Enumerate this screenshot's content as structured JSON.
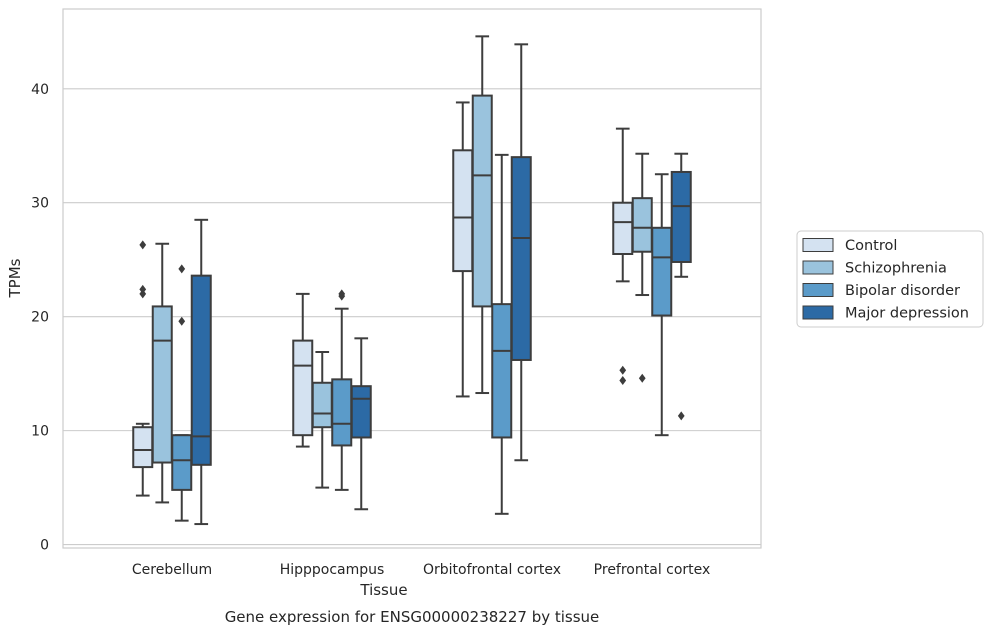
{
  "chart_data": {
    "type": "box",
    "title": "",
    "xlabel": "Tissue",
    "ylabel": "TPMs",
    "caption": "Gene expression for ENSG00000238227 by tissue",
    "ylim": [
      -0.3,
      47
    ],
    "yticks": [
      0,
      10,
      20,
      30,
      40
    ],
    "grid": "horizontal",
    "legend_position": "right",
    "categories": [
      "Cerebellum",
      "Hipppocampus",
      "Orbitofrontal cortex",
      "Prefrontal cortex"
    ],
    "series": [
      {
        "name": "Control",
        "color": "#d4e2f1",
        "boxes": [
          {
            "q1": 6.8,
            "median": 8.3,
            "q3": 10.3,
            "whisker_low": 4.3,
            "whisker_high": 10.6,
            "outliers": [
              22.0,
              22.4,
              26.3
            ]
          },
          {
            "q1": 9.6,
            "median": 15.7,
            "q3": 17.9,
            "whisker_low": 8.6,
            "whisker_high": 22.0,
            "outliers": []
          },
          {
            "q1": 24.0,
            "median": 28.7,
            "q3": 34.6,
            "whisker_low": 13.0,
            "whisker_high": 38.8,
            "outliers": []
          },
          {
            "q1": 25.5,
            "median": 28.3,
            "q3": 30.0,
            "whisker_low": 23.1,
            "whisker_high": 36.5,
            "outliers": [
              14.4,
              15.3
            ]
          }
        ]
      },
      {
        "name": "Schizophrenia",
        "color": "#9ac3dd",
        "boxes": [
          {
            "q1": 7.2,
            "median": 17.9,
            "q3": 20.9,
            "whisker_low": 3.7,
            "whisker_high": 26.4,
            "outliers": []
          },
          {
            "q1": 10.3,
            "median": 11.5,
            "q3": 14.2,
            "whisker_low": 5.0,
            "whisker_high": 16.9,
            "outliers": []
          },
          {
            "q1": 20.9,
            "median": 32.4,
            "q3": 39.4,
            "whisker_low": 13.3,
            "whisker_high": 44.6,
            "outliers": []
          },
          {
            "q1": 25.7,
            "median": 27.8,
            "q3": 30.4,
            "whisker_low": 21.9,
            "whisker_high": 34.3,
            "outliers": [
              14.6
            ]
          }
        ]
      },
      {
        "name": "Bipolar disorder",
        "color": "#5b9bc9",
        "boxes": [
          {
            "q1": 4.8,
            "median": 7.4,
            "q3": 9.6,
            "whisker_low": 2.1,
            "whisker_high": 9.6,
            "outliers": [
              19.6,
              24.2
            ]
          },
          {
            "q1": 8.7,
            "median": 10.6,
            "q3": 14.5,
            "whisker_low": 4.8,
            "whisker_high": 20.7,
            "outliers": [
              21.8,
              22.0
            ]
          },
          {
            "q1": 9.4,
            "median": 17.0,
            "q3": 21.1,
            "whisker_low": 2.7,
            "whisker_high": 34.2,
            "outliers": []
          },
          {
            "q1": 20.1,
            "median": 25.2,
            "q3": 27.8,
            "whisker_low": 9.6,
            "whisker_high": 32.5,
            "outliers": []
          }
        ]
      },
      {
        "name": "Major depression",
        "color": "#2c6aa5",
        "boxes": [
          {
            "q1": 7.0,
            "median": 9.5,
            "q3": 23.6,
            "whisker_low": 1.8,
            "whisker_high": 28.5,
            "outliers": []
          },
          {
            "q1": 9.4,
            "median": 12.8,
            "q3": 13.9,
            "whisker_low": 3.1,
            "whisker_high": 18.1,
            "outliers": []
          },
          {
            "q1": 16.2,
            "median": 26.9,
            "q3": 34.0,
            "whisker_low": 7.4,
            "whisker_high": 43.9,
            "outliers": []
          },
          {
            "q1": 24.8,
            "median": 29.7,
            "q3": 32.7,
            "whisker_low": 23.5,
            "whisker_high": 34.3,
            "outliers": [
              11.3
            ]
          }
        ]
      }
    ]
  }
}
